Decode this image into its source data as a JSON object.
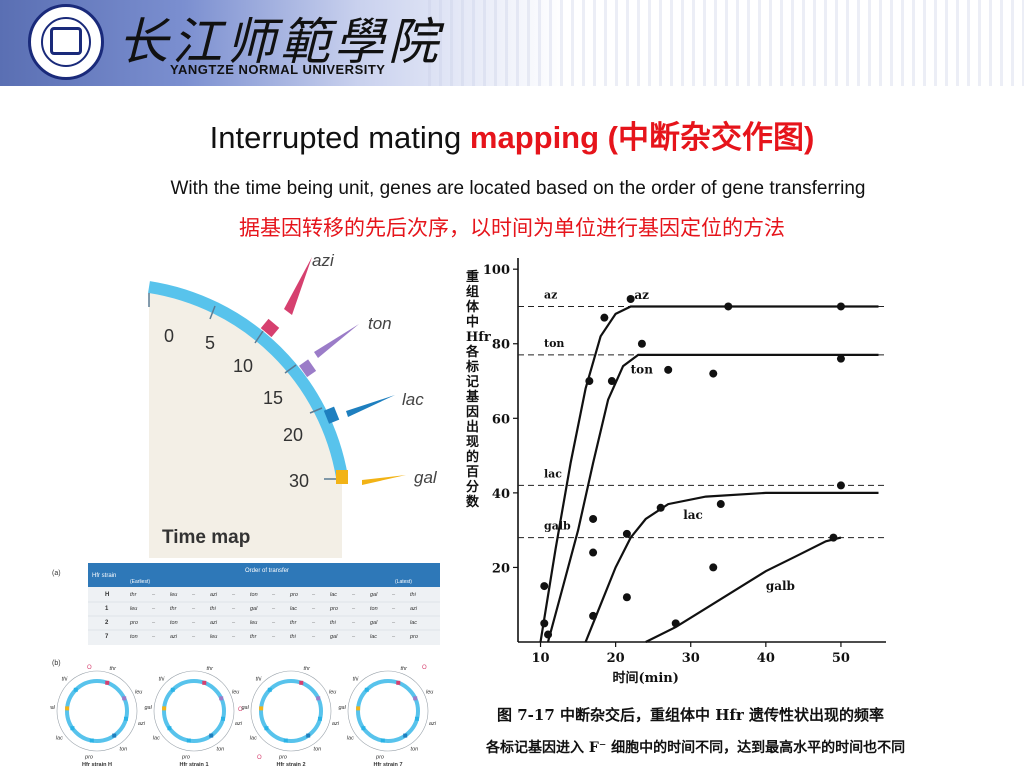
{
  "header": {
    "university_cn": "长江师範學院",
    "university_en": "YANGTZE NORMAL UNIVERSITY",
    "colors": {
      "band": "#5a6fb3",
      "seal": "#1a2a7a"
    }
  },
  "title": {
    "plain": "Interrupted mating",
    "highlight": "mapping (中断杂交作图)"
  },
  "subtitle_en": "With the time being unit, genes are located based on  the order of gene transferring",
  "subtitle_cn": "据基因转移的先后次序，以时间为单位进行基因定位的方法",
  "time_map": {
    "label": "Time map",
    "ticks": [
      "0",
      "5",
      "10",
      "15",
      "20",
      "30"
    ],
    "genes": [
      {
        "name": "azi",
        "color": "#d6406f"
      },
      {
        "name": "ton",
        "color": "#9b7cc8"
      },
      {
        "name": "lac",
        "color": "#1e7fbf"
      },
      {
        "name": "gal",
        "color": "#f2b316"
      }
    ]
  },
  "table": {
    "panel_a": "(a)",
    "panel_b": "(b)",
    "col_strain": "Hfr strain",
    "col_order": "Order of transfer",
    "earliest": "(Earliest)",
    "latest": "(Latest)",
    "rows": [
      {
        "strain": "H",
        "genes": [
          "thr",
          "leu",
          "azi",
          "ton",
          "pro",
          "lac",
          "gal",
          "thi"
        ]
      },
      {
        "strain": "1",
        "genes": [
          "leu",
          "thr",
          "thi",
          "gal",
          "lac",
          "pro",
          "ton",
          "azi"
        ]
      },
      {
        "strain": "2",
        "genes": [
          "pro",
          "ton",
          "azi",
          "leu",
          "thr",
          "thi",
          "gal",
          "lac"
        ]
      },
      {
        "strain": "7",
        "genes": [
          "ton",
          "azi",
          "leu",
          "thr",
          "thi",
          "gal",
          "lac",
          "pro"
        ]
      }
    ],
    "circles": [
      {
        "label": "Hfr strain H"
      },
      {
        "label": "Hfr strain 1"
      },
      {
        "label": "Hfr strain 2"
      },
      {
        "label": "Hfr strain 7"
      }
    ],
    "circle_genes": [
      "thr",
      "leu",
      "azi",
      "ton",
      "pro",
      "lac",
      "gal",
      "thi"
    ],
    "origin_label": "O"
  },
  "graph": {
    "ylabel_cn": "重组体中 Hfr 各标记基因出现的百分数",
    "xlabel_cn": "时间(min)",
    "caption_title": "图 7-17   中断杂交后，重组体中 Hfr 遗传性状出现的频率",
    "caption_sub": "各标记基因进入 F⁻ 细胞中的时间不同，达到最高水平的时间也不同"
  },
  "chart_data": {
    "type": "scatter",
    "title": "",
    "xlabel": "时间(min)",
    "ylabel": "重组体中 Hfr 各标记基因出现的百分数",
    "x_ticks": [
      "10",
      "20",
      "30",
      "40",
      "50"
    ],
    "y_ticks": [
      "20",
      "40",
      "60",
      "80",
      "100"
    ],
    "xlim": [
      7,
      56
    ],
    "ylim": [
      0,
      103
    ],
    "plateaus": [
      {
        "label": "az",
        "y": 90
      },
      {
        "label": "ton",
        "y": 77
      },
      {
        "label": "lac",
        "y": 42
      },
      {
        "label": "galb",
        "y": 28
      }
    ],
    "series": [
      {
        "name": "az",
        "points": [
          [
            10.5,
            5
          ],
          [
            16.5,
            70
          ],
          [
            18.5,
            87
          ],
          [
            22,
            92
          ],
          [
            35,
            90
          ],
          [
            50,
            90
          ]
        ],
        "curve": [
          [
            10,
            0
          ],
          [
            12,
            25
          ],
          [
            14,
            48
          ],
          [
            16,
            68
          ],
          [
            18,
            82
          ],
          [
            20,
            88
          ],
          [
            22,
            90
          ],
          [
            30,
            90
          ],
          [
            55,
            90
          ]
        ]
      },
      {
        "name": "ton",
        "points": [
          [
            11,
            2
          ],
          [
            17,
            33
          ],
          [
            19.5,
            70
          ],
          [
            23.5,
            80
          ],
          [
            27,
            73
          ],
          [
            33,
            72
          ],
          [
            50,
            76
          ]
        ],
        "curve": [
          [
            11,
            0
          ],
          [
            13,
            15
          ],
          [
            15,
            30
          ],
          [
            17,
            48
          ],
          [
            19,
            65
          ],
          [
            21,
            74
          ],
          [
            23,
            77
          ],
          [
            30,
            77
          ],
          [
            55,
            77
          ]
        ]
      },
      {
        "name": "lac",
        "points": [
          [
            10.5,
            15
          ],
          [
            17,
            24
          ],
          [
            21.5,
            29
          ],
          [
            26,
            36
          ],
          [
            34,
            37
          ],
          [
            50,
            42
          ]
        ],
        "curve": [
          [
            16,
            0
          ],
          [
            18,
            10
          ],
          [
            20,
            20
          ],
          [
            22,
            28
          ],
          [
            24,
            33
          ],
          [
            27,
            37
          ],
          [
            32,
            39
          ],
          [
            40,
            40
          ],
          [
            55,
            40
          ]
        ]
      },
      {
        "name": "galb",
        "points": [
          [
            17,
            7
          ],
          [
            21.5,
            12
          ],
          [
            28,
            5
          ],
          [
            33,
            20
          ],
          [
            49,
            28
          ]
        ],
        "curve": [
          [
            24,
            0
          ],
          [
            28,
            4
          ],
          [
            32,
            9
          ],
          [
            36,
            14
          ],
          [
            40,
            19
          ],
          [
            44,
            23
          ],
          [
            48,
            27
          ],
          [
            50,
            28
          ]
        ]
      }
    ]
  }
}
